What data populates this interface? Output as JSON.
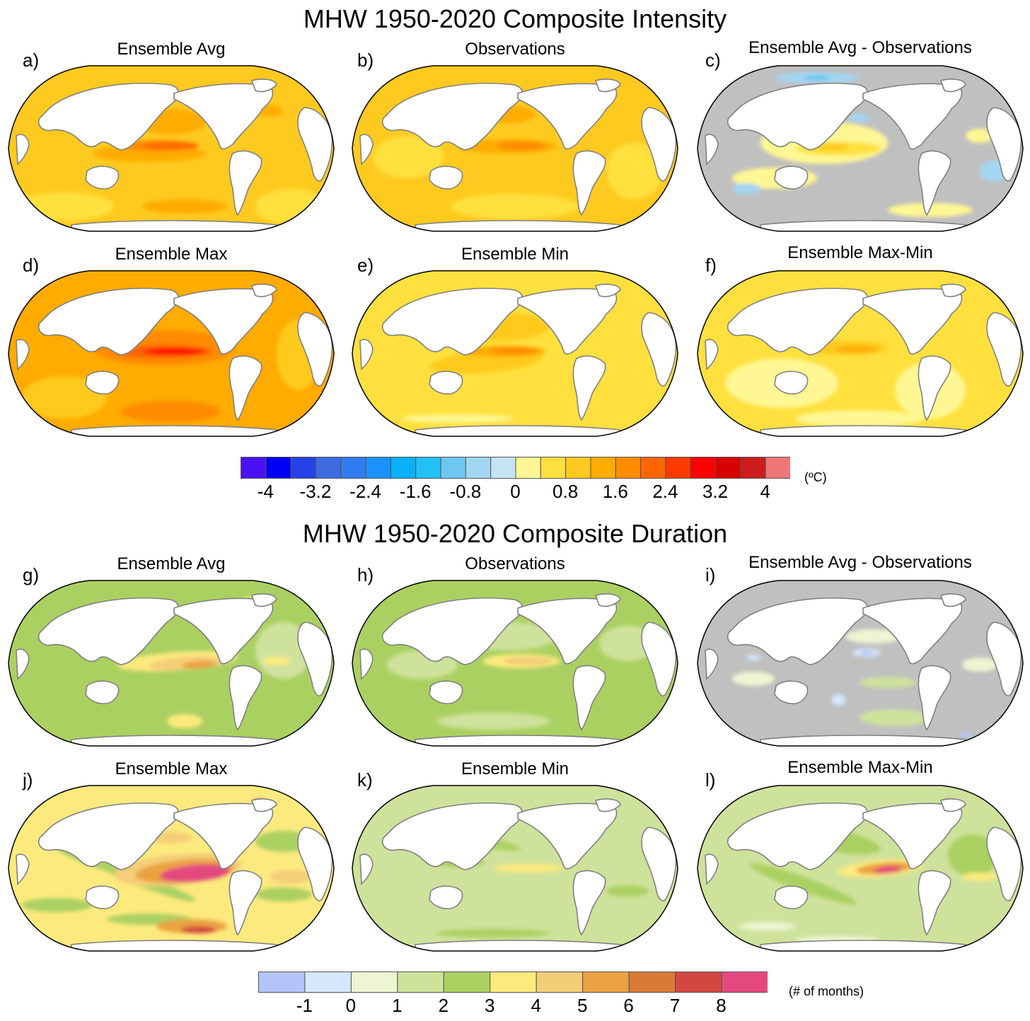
{
  "figure": {
    "sections": [
      {
        "title": "MHW 1950-2020 Composite Intensity",
        "panels": [
          {
            "letter": "a)",
            "title": "Ensemble Avg",
            "field": "intensity_avg"
          },
          {
            "letter": "b)",
            "title": "Observations",
            "field": "intensity_obs"
          },
          {
            "letter": "c)",
            "title": "Ensemble Avg - Observations",
            "field": "intensity_diff"
          },
          {
            "letter": "d)",
            "title": "Ensemble Max",
            "field": "intensity_max"
          },
          {
            "letter": "e)",
            "title": "Ensemble Min",
            "field": "intensity_min"
          },
          {
            "letter": "f)",
            "title": "Ensemble Max-Min",
            "field": "intensity_range"
          }
        ],
        "colorbar": {
          "unit": "(ºC)",
          "tick_labels": [
            "-4",
            "-3.2",
            "-2.4",
            "-1.6",
            "-0.8",
            "0",
            "0.8",
            "1.6",
            "2.4",
            "3.2",
            "4"
          ],
          "tick_values": [
            -4,
            -3.2,
            -2.4,
            -1.6,
            -0.8,
            0,
            0.8,
            1.6,
            2.4,
            3.2,
            4
          ],
          "levels": [
            -4.4,
            -4.0,
            -3.6,
            -3.2,
            -2.8,
            -2.4,
            -2.0,
            -1.6,
            -1.2,
            -0.8,
            -0.4,
            0.0,
            0.4,
            0.8,
            1.2,
            1.6,
            2.0,
            2.4,
            2.8,
            3.2,
            3.6,
            4.0,
            4.4
          ],
          "colors": [
            "#4a12f2",
            "#0000f5",
            "#2541e8",
            "#3d6adf",
            "#2e7cf0",
            "#1c92fa",
            "#07b1fb",
            "#21c0f5",
            "#6ec7f0",
            "#a3d6f2",
            "#c4e4f4",
            "#fff793",
            "#ffe03e",
            "#ffca1f",
            "#ffab00",
            "#ff8b00",
            "#ff6600",
            "#ff3a00",
            "#ff0000",
            "#d80000",
            "#cc1c1c",
            "#ef7778"
          ]
        }
      },
      {
        "title": "MHW 1950-2020 Composite Duration",
        "panels": [
          {
            "letter": "g)",
            "title": "Ensemble Avg",
            "field": "duration_avg"
          },
          {
            "letter": "h)",
            "title": "Observations",
            "field": "duration_obs"
          },
          {
            "letter": "i)",
            "title": "Ensemble Avg - Observations",
            "field": "duration_diff"
          },
          {
            "letter": "j)",
            "title": "Ensemble Max",
            "field": "duration_max"
          },
          {
            "letter": "k)",
            "title": "Ensemble Min",
            "field": "duration_min"
          },
          {
            "letter": "l)",
            "title": "Ensemble Max-Min",
            "field": "duration_range"
          }
        ],
        "colorbar": {
          "unit": "(# of months)",
          "tick_labels": [
            "-1",
            "0",
            "1",
            "2",
            "3",
            "4",
            "5",
            "6",
            "7",
            "8"
          ],
          "tick_values": [
            -1,
            0,
            1,
            2,
            3,
            4,
            5,
            6,
            7,
            8
          ],
          "levels": [
            -2,
            -1,
            0,
            1,
            2,
            3,
            4,
            5,
            6,
            7,
            8,
            9
          ],
          "colors": [
            "#b3c4f9",
            "#d6e7fc",
            "#eef5d2",
            "#cfe29c",
            "#abd062",
            "#fdea7e",
            "#f4cd78",
            "#eba241",
            "#d97a37",
            "#d44741",
            "#e4497e"
          ]
        }
      }
    ]
  },
  "chart_data": [
    {
      "type": "heatmap",
      "title": "MHW 1950-2020 Composite Intensity",
      "projection": "Robinson, centered on Pacific (180°)",
      "subplots": [
        "a) Ensemble Avg",
        "b) Observations",
        "c) Ensemble Avg - Observations",
        "d) Ensemble Max",
        "e) Ensemble Min",
        "f) Ensemble Max-Min"
      ],
      "colorbar_label": "(ºC)",
      "colorbar_ticks": [
        -4,
        -3.2,
        -2.4,
        -1.6,
        -0.8,
        0,
        0.8,
        1.6,
        2.4,
        3.2,
        4
      ],
      "colorbar_range": [
        -4.4,
        4.4
      ],
      "colorbar_interval": 0.4,
      "summary": {
        "a) Ensemble Avg": "0.8-2 ºC globally; equatorial eastern Pacific maximum ~2.4-3.2 ºC; Kuroshio and Gulf Stream hotspots ~2.4-2.8",
        "b) Observations": "0.4-1.6 ºC globally; equatorial eastern Pacific ~2.0-2.8 ºC",
        "c) Ensemble Avg - Observations": "mostly -0.4 to 0.4 (gray); positive 0.4-1.2 in tropical Pacific; negative -0.4 to -1.6 in Arctic",
        "d) Ensemble Max": "1.2-2.4 ºC globally; equatorial Pacific up to ~3.6 ºC",
        "e) Ensemble Min": "0.4-1.2 ºC globally; equatorial Pacific ~2.0-2.4 ºC",
        "f) Ensemble Max-Min": "0.4-1.2 ºC; equatorial Pacific ~1.6-2.0 ºC"
      }
    },
    {
      "type": "heatmap",
      "title": "MHW 1950-2020 Composite Duration",
      "projection": "Robinson, centered on Pacific (180°)",
      "subplots": [
        "g) Ensemble Avg",
        "h) Observations",
        "i) Ensemble Avg - Observations",
        "j) Ensemble Max",
        "k) Ensemble Min",
        "l) Ensemble Max-Min"
      ],
      "colorbar_label": "(# of months)",
      "colorbar_ticks": [
        -1,
        0,
        1,
        2,
        3,
        4,
        5,
        6,
        7,
        8
      ],
      "colorbar_range": [
        -2,
        9
      ],
      "colorbar_interval": 1,
      "summary": {
        "g) Ensemble Avg": "2-3 months globally; equatorial eastern Pacific 3-6 months",
        "h) Observations": "1-3 months; equatorial Pacific 3-6 months",
        "i) Ensemble Avg - Observations": "mostly -1 to 1 (gray); small 1-3 positive in eastern Pacific and Southern Ocean; negative -1 to -2 patches",
        "j) Ensemble Max": "2-5 months; equatorial eastern Pacific >8 months; Southern Pacific 5-8",
        "k) Ensemble Min": "1-2 months; equatorial Pacific 3-4 months",
        "l) Ensemble Max-Min": "1-3 months; equatorial eastern Pacific 4-8 months"
      }
    }
  ]
}
